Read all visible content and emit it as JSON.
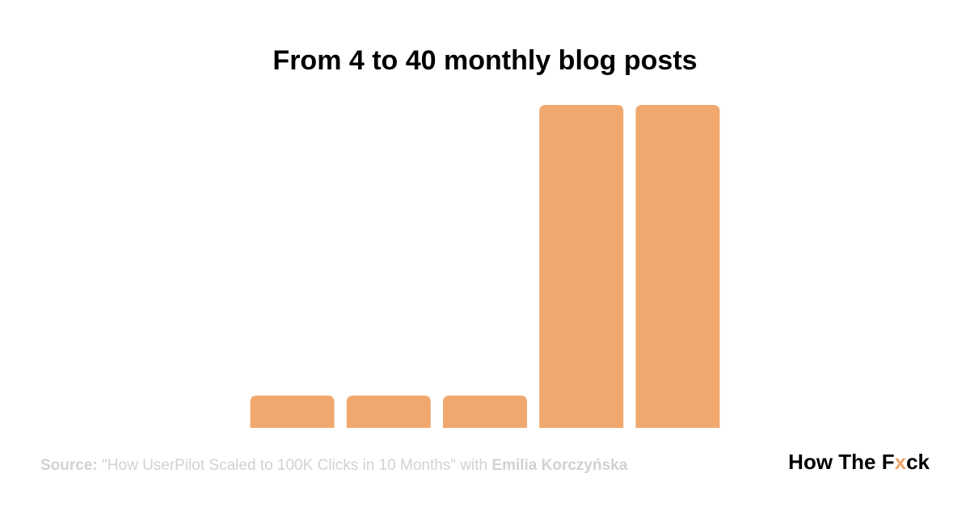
{
  "chart_data": {
    "type": "bar",
    "title": "From 4 to 40 monthly blog posts",
    "categories": [
      null,
      null,
      null,
      null,
      null
    ],
    "values": [
      4,
      4,
      4,
      40,
      40
    ],
    "color": "#f0a86e",
    "ylim": [
      0,
      40
    ]
  },
  "footer": {
    "source_label": "Source:",
    "source_text": "\"How UserPilot Scaled to 100K Clicks in 10 Months\" with",
    "source_author": "Emilia Korczyńska",
    "brand": [
      "How The F",
      "x",
      "ck"
    ],
    "brand_accent": "#f0a86e"
  }
}
